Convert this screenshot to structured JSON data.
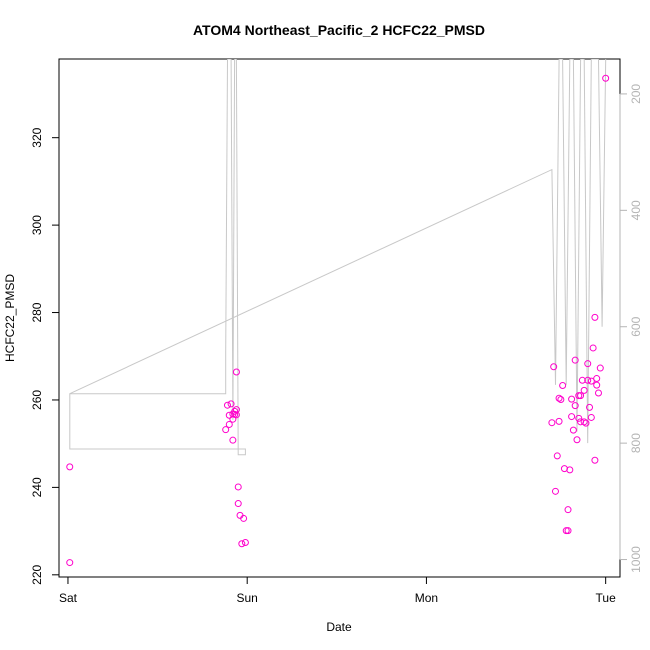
{
  "chart_data": {
    "type": "scatter",
    "title": "ATOM4 Northeast_Pacific_2 HCFC22_PMSD",
    "xlabel": "Date",
    "ylabel": "HCFC22_PMSD",
    "x_ticks": [
      "Sat",
      "Sun",
      "Mon",
      "Tue"
    ],
    "xlim": [
      -0.05,
      3.08
    ],
    "ylim": [
      219.5,
      338
    ],
    "y_ticks": [
      220,
      240,
      260,
      280,
      300,
      320
    ],
    "right_axis": {
      "ticks": [
        200,
        400,
        600,
        800,
        1000
      ],
      "lim": [
        1030,
        140
      ],
      "color": "#c8c8c8",
      "line_points": [
        [
          0.01,
          810
        ],
        [
          0.01,
          715
        ],
        [
          0.88,
          715
        ],
        [
          0.88,
          645
        ],
        [
          0.89,
          140
        ],
        [
          0.91,
          140
        ],
        [
          0.92,
          760
        ],
        [
          0.93,
          140
        ],
        [
          0.94,
          140
        ],
        [
          0.95,
          820
        ],
        [
          0.99,
          820
        ],
        [
          0.99,
          810
        ],
        [
          0.01,
          810
        ],
        [
          0.01,
          715
        ],
        [
          2.7,
          330
        ],
        [
          2.72,
          700
        ],
        [
          2.74,
          140
        ],
        [
          2.76,
          140
        ],
        [
          2.78,
          700
        ],
        [
          2.8,
          140
        ],
        [
          2.82,
          140
        ],
        [
          2.84,
          780
        ],
        [
          2.86,
          140
        ],
        [
          2.88,
          140
        ],
        [
          2.9,
          800
        ],
        [
          2.92,
          140
        ],
        [
          2.94,
          140
        ],
        [
          2.96,
          140
        ],
        [
          2.98,
          600
        ],
        [
          3.0,
          140
        ]
      ]
    },
    "points_color": "#ff00cc",
    "series": [
      {
        "x": [
          0.01,
          0.01,
          0.88,
          0.89,
          0.9,
          0.9,
          0.91,
          0.92,
          0.92,
          0.92,
          0.93,
          0.93,
          0.94,
          0.94,
          0.94,
          0.95,
          0.95,
          0.96,
          0.97,
          0.98,
          0.99,
          2.7,
          2.71,
          2.72,
          2.73,
          2.74,
          2.74,
          2.75,
          2.76,
          2.77,
          2.78,
          2.79,
          2.79,
          2.8,
          2.81,
          2.81,
          2.82,
          2.83,
          2.83,
          2.84,
          2.85,
          2.85,
          2.86,
          2.86,
          2.87,
          2.88,
          2.88,
          2.89,
          2.9,
          2.9,
          2.91,
          2.92,
          2.92,
          2.93,
          2.94,
          2.94,
          2.95,
          2.95,
          2.96,
          2.97
        ],
        "y": [
          244.7,
          222.8,
          253.2,
          258.8,
          254.4,
          256.5,
          259.1,
          256.8,
          250.8,
          255.6,
          256.7,
          257.4,
          257.8,
          256.6,
          266.4,
          240.1,
          236.3,
          233.6,
          227.1,
          232.9,
          227.4,
          254.8,
          267.6,
          239.1,
          247.2,
          260.4,
          255.1,
          260.1,
          263.3,
          244.3,
          230.1,
          234.9,
          230.1,
          244.0,
          256.2,
          260.2,
          253.1,
          258.7,
          269.1,
          250.9,
          255.8,
          261.0,
          255.0,
          261.0,
          264.5,
          262.2,
          255.0,
          254.7,
          268.3,
          264.5,
          258.3,
          256.0,
          264.3,
          271.9,
          278.9,
          246.2,
          263.4,
          264.9,
          261.6,
          267.3
        ]
      }
    ],
    "extra_points": [
      {
        "x": 3.0,
        "y": 333.6
      }
    ]
  }
}
